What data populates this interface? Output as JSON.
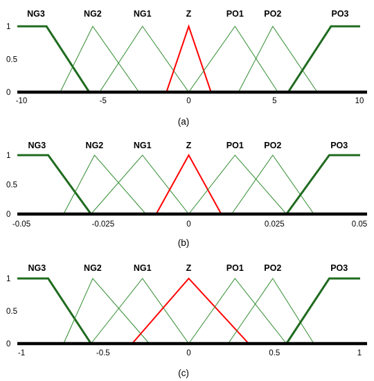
{
  "chart_data": [
    {
      "type": "line",
      "panel": "a",
      "caption": "(a)",
      "xlim": [
        -10,
        10
      ],
      "ylim": [
        0,
        1
      ],
      "x_ticks": [
        -10,
        -5,
        0,
        5,
        10
      ],
      "x_tick_labels": [
        "-10",
        "-5",
        "0",
        "5",
        "10"
      ],
      "y_ticks": [
        0,
        0.5,
        1
      ],
      "y_tick_labels": [
        "0",
        "0.5",
        "1"
      ],
      "grid": false,
      "series": [
        {
          "name": "NG3",
          "color": "#1f6b1f",
          "style": "bold",
          "x": [
            -10,
            -8.3,
            -5.8
          ],
          "y": [
            1,
            1,
            0
          ]
        },
        {
          "name": "NG2",
          "color": "#2e8b2e",
          "style": "thin",
          "x": [
            -7.5,
            -5.6,
            -2.9
          ],
          "y": [
            0,
            1,
            0
          ]
        },
        {
          "name": "NG1",
          "color": "#2e8b2e",
          "style": "thin",
          "x": [
            -5.2,
            -2.7,
            0
          ],
          "y": [
            0,
            1,
            0
          ]
        },
        {
          "name": "Z",
          "color": "#ff0000",
          "style": "red",
          "x": [
            -1.3,
            0,
            1.3
          ],
          "y": [
            0,
            1,
            0
          ]
        },
        {
          "name": "PO1",
          "color": "#2e8b2e",
          "style": "thin",
          "x": [
            0,
            2.7,
            5.2
          ],
          "y": [
            0,
            1,
            0
          ]
        },
        {
          "name": "PO2",
          "color": "#2e8b2e",
          "style": "thin",
          "x": [
            2.9,
            4.9,
            7.5
          ],
          "y": [
            0,
            1,
            0
          ]
        },
        {
          "name": "PO3",
          "color": "#1f6b1f",
          "style": "bold",
          "x": [
            5.8,
            8.3,
            10
          ],
          "y": [
            0,
            1,
            1
          ]
        }
      ]
    },
    {
      "type": "line",
      "panel": "b",
      "caption": "(b)",
      "xlim": [
        -0.05,
        0.05
      ],
      "ylim": [
        0,
        1
      ],
      "x_ticks": [
        -0.05,
        -0.025,
        0,
        0.025,
        0.05
      ],
      "x_tick_labels": [
        "-0.05",
        "-0.025",
        "0",
        "0.025",
        "0.05"
      ],
      "y_ticks": [
        0,
        0.5,
        1
      ],
      "y_tick_labels": [
        "0",
        "0.5",
        "1"
      ],
      "grid": false,
      "series": [
        {
          "name": "NG3",
          "color": "#1f6b1f",
          "style": "bold",
          "x": [
            -0.05,
            -0.041,
            -0.0285
          ],
          "y": [
            1,
            1,
            0
          ]
        },
        {
          "name": "NG2",
          "color": "#2e8b2e",
          "style": "thin",
          "x": [
            -0.0365,
            -0.0275,
            -0.0125
          ],
          "y": [
            0,
            1,
            0
          ]
        },
        {
          "name": "NG1",
          "color": "#2e8b2e",
          "style": "thin",
          "x": [
            -0.0285,
            -0.0135,
            0
          ],
          "y": [
            0,
            1,
            0
          ]
        },
        {
          "name": "Z",
          "color": "#ff0000",
          "style": "red",
          "x": [
            -0.0095,
            0,
            0.0095
          ],
          "y": [
            0,
            1,
            0
          ]
        },
        {
          "name": "PO1",
          "color": "#2e8b2e",
          "style": "thin",
          "x": [
            0,
            0.0135,
            0.0285
          ],
          "y": [
            0,
            1,
            0
          ]
        },
        {
          "name": "PO2",
          "color": "#2e8b2e",
          "style": "thin",
          "x": [
            0.0125,
            0.0245,
            0.0365
          ],
          "y": [
            0,
            1,
            0
          ]
        },
        {
          "name": "PO3",
          "color": "#1f6b1f",
          "style": "bold",
          "x": [
            0.0285,
            0.041,
            0.05
          ],
          "y": [
            0,
            1,
            1
          ]
        }
      ]
    },
    {
      "type": "line",
      "panel": "c",
      "caption": "(c)",
      "xlim": [
        -1,
        1
      ],
      "ylim": [
        0,
        1
      ],
      "x_ticks": [
        -1,
        -0.5,
        0,
        0.5,
        1
      ],
      "x_tick_labels": [
        "-1",
        "-0.5",
        "0",
        "0.5",
        "1"
      ],
      "y_ticks": [
        0,
        0.5,
        1
      ],
      "y_tick_labels": [
        "0",
        "0.5",
        "1"
      ],
      "grid": false,
      "series": [
        {
          "name": "NG3",
          "color": "#1f6b1f",
          "style": "bold",
          "x": [
            -1,
            -0.82,
            -0.57
          ],
          "y": [
            1,
            1,
            0
          ]
        },
        {
          "name": "NG2",
          "color": "#2e8b2e",
          "style": "thin",
          "x": [
            -0.73,
            -0.56,
            -0.23
          ],
          "y": [
            0,
            1,
            0
          ]
        },
        {
          "name": "NG1",
          "color": "#2e8b2e",
          "style": "thin",
          "x": [
            -0.57,
            -0.27,
            0
          ],
          "y": [
            0,
            1,
            0
          ]
        },
        {
          "name": "Z",
          "color": "#ff0000",
          "style": "red",
          "x": [
            -0.33,
            0,
            0.35
          ],
          "y": [
            0,
            1,
            0
          ]
        },
        {
          "name": "PO1",
          "color": "#2e8b2e",
          "style": "thin",
          "x": [
            0,
            0.27,
            0.57
          ],
          "y": [
            0,
            1,
            0
          ]
        },
        {
          "name": "PO2",
          "color": "#2e8b2e",
          "style": "thin",
          "x": [
            0.23,
            0.49,
            0.73
          ],
          "y": [
            0,
            1,
            0
          ]
        },
        {
          "name": "PO3",
          "color": "#1f6b1f",
          "style": "bold",
          "x": [
            0.57,
            0.82,
            1
          ],
          "y": [
            0,
            1,
            1
          ]
        }
      ]
    }
  ]
}
